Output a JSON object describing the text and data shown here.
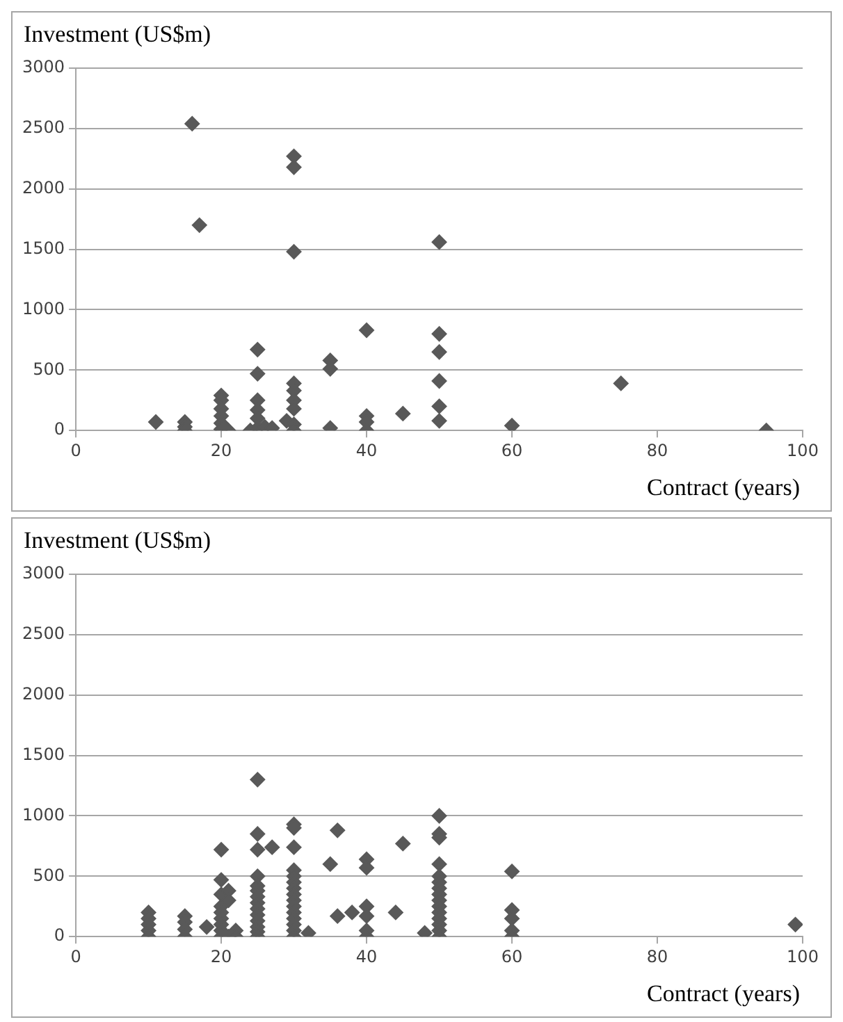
{
  "chart_data": [
    {
      "type": "scatter",
      "xlabel": "Contract (years)",
      "ylabel": "Investment (US$m)",
      "xlim": [
        0,
        100
      ],
      "xticks": [
        0,
        20,
        40,
        60,
        80,
        100
      ],
      "ylim": [
        0,
        3000
      ],
      "yticks": [
        0,
        500,
        1000,
        1500,
        2000,
        2500,
        3000
      ],
      "grid": "y",
      "legend": false,
      "marker": "diamond",
      "series": [
        {
          "color": "#595959",
          "x": [
            11,
            15,
            15,
            15,
            16,
            17,
            20,
            20,
            20,
            20,
            20,
            20,
            21,
            24,
            25,
            25,
            25,
            25,
            25,
            25,
            26,
            27,
            29,
            30,
            30,
            30,
            30,
            30,
            30,
            30,
            30,
            30,
            35,
            35,
            35,
            40,
            40,
            40,
            40,
            45,
            50,
            50,
            50,
            50,
            50,
            50,
            60,
            75,
            95
          ],
          "values": [
            70,
            70,
            30,
            0,
            2540,
            1700,
            290,
            250,
            180,
            120,
            60,
            10,
            0,
            0,
            670,
            470,
            250,
            170,
            100,
            20,
            30,
            20,
            80,
            2270,
            2180,
            1480,
            390,
            330,
            250,
            180,
            50,
            0,
            580,
            510,
            20,
            830,
            120,
            70,
            0,
            140,
            1560,
            800,
            650,
            410,
            200,
            80,
            40,
            390,
            0
          ]
        }
      ]
    },
    {
      "type": "scatter",
      "xlabel": "Contract (years)",
      "ylabel": "Investment (US$m)",
      "xlim": [
        0,
        100
      ],
      "xticks": [
        0,
        20,
        40,
        60,
        80,
        100
      ],
      "ylim": [
        0,
        3000
      ],
      "yticks": [
        0,
        500,
        1000,
        1500,
        2000,
        2500,
        3000
      ],
      "grid": "y",
      "legend": false,
      "marker": "diamond",
      "series": [
        {
          "color": "#595959",
          "x": [
            10,
            10,
            10,
            10,
            10,
            15,
            15,
            15,
            15,
            18,
            20,
            20,
            20,
            20,
            20,
            20,
            20,
            20,
            20,
            21,
            21,
            21,
            22,
            22,
            25,
            25,
            25,
            25,
            25,
            25,
            25,
            25,
            25,
            25,
            25,
            25,
            25,
            25,
            27,
            30,
            30,
            30,
            30,
            30,
            30,
            30,
            30,
            30,
            30,
            30,
            30,
            30,
            30,
            30,
            32,
            35,
            36,
            36,
            38,
            40,
            40,
            40,
            40,
            40,
            40,
            44,
            45,
            48,
            50,
            50,
            50,
            50,
            50,
            50,
            50,
            50,
            50,
            50,
            50,
            50,
            50,
            50,
            50,
            60,
            60,
            60,
            60,
            60,
            99
          ],
          "values": [
            200,
            150,
            100,
            50,
            0,
            170,
            120,
            60,
            0,
            80,
            720,
            470,
            350,
            250,
            200,
            150,
            100,
            50,
            0,
            380,
            300,
            0,
            50,
            0,
            1300,
            850,
            720,
            500,
            420,
            380,
            330,
            280,
            230,
            180,
            130,
            80,
            40,
            0,
            740,
            930,
            900,
            740,
            550,
            500,
            450,
            400,
            350,
            300,
            250,
            200,
            150,
            100,
            50,
            0,
            30,
            600,
            880,
            170,
            200,
            640,
            570,
            250,
            170,
            50,
            0,
            200,
            770,
            30,
            1000,
            850,
            820,
            600,
            500,
            450,
            400,
            350,
            300,
            250,
            200,
            150,
            100,
            50,
            0,
            540,
            220,
            150,
            50,
            0,
            100
          ]
        }
      ]
    }
  ]
}
